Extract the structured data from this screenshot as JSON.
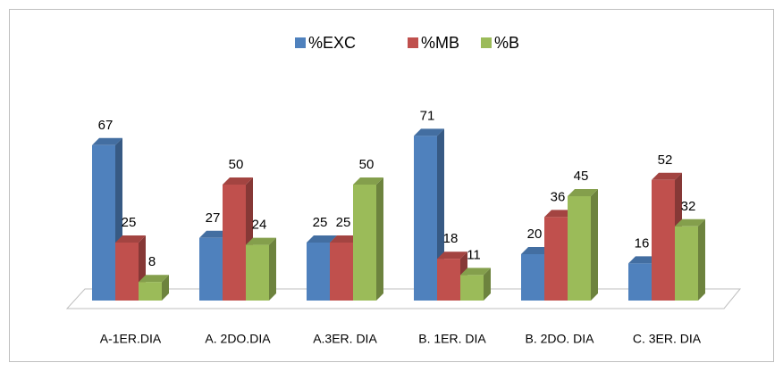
{
  "chart_data": {
    "type": "bar3d",
    "categories": [
      "A-1ER.DIA",
      "A. 2DO.DIA",
      "A.3ER. DIA",
      "B. 1ER. DIA",
      "B. 2DO. DIA",
      "C. 3ER. DIA"
    ],
    "series": [
      {
        "name": "%EXC",
        "color": "#4f81bd",
        "values": [
          67,
          27,
          25,
          71,
          20,
          16
        ]
      },
      {
        "name": "%MB",
        "color": "#c0504d",
        "values": [
          25,
          50,
          25,
          18,
          36,
          52
        ]
      },
      {
        "name": "%B",
        "color": "#9bbb59",
        "values": [
          8,
          24,
          50,
          11,
          45,
          32
        ]
      }
    ]
  }
}
